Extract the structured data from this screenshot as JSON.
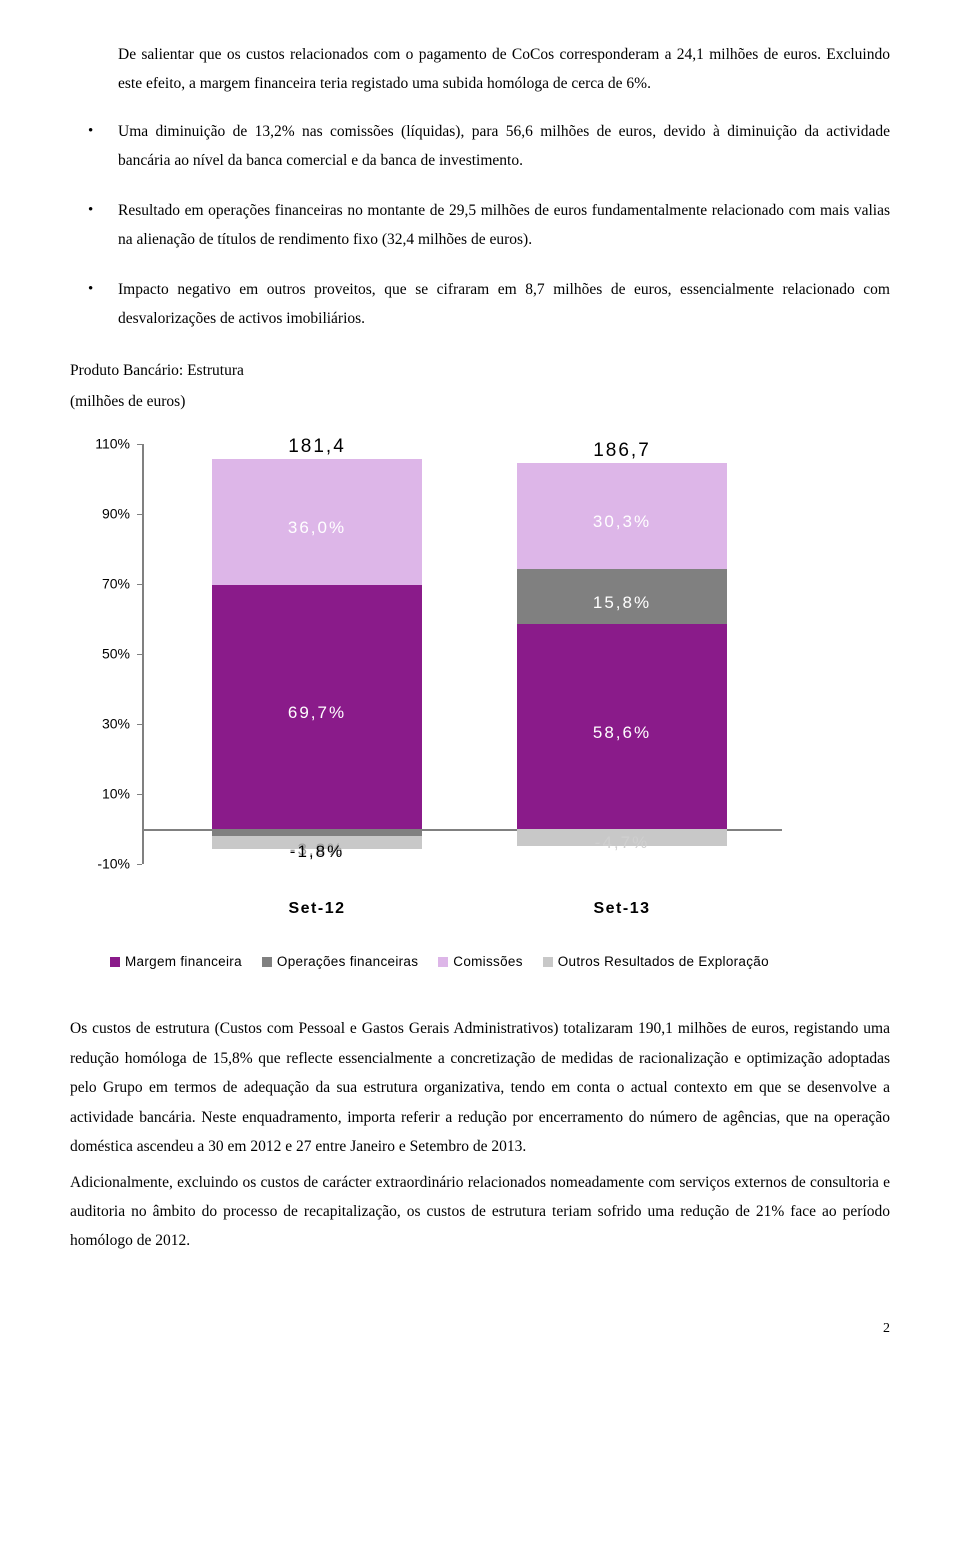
{
  "para_lead": "De salientar que os custos relacionados com o pagamento de CoCos corresponderam a 24,1 milhões de euros. Excluindo este efeito, a margem financeira teria registado uma subida homóloga de cerca de 6%.",
  "bullets": [
    "Uma diminuição de 13,2% nas comissões (líquidas), para 56,6 milhões de euros, devido à diminuição da actividade bancária ao nível da banca comercial e da banca de investimento.",
    "Resultado em operações financeiras no montante de 29,5 milhões de euros fundamentalmente relacionado com mais valias na alienação de títulos de rendimento fixo (32,4 milhões de euros).",
    "Impacto negativo em outros proveitos, que se cifraram em 8,7 milhões de euros, essencialmente relacionado com desvalorizações de activos imobiliários."
  ],
  "chart": {
    "title": "Produto Bancário: Estrutura",
    "subtitle": "(milhões de euros)",
    "y_ticks": [
      "110%",
      "90%",
      "70%",
      "50%",
      "30%",
      "10%",
      "-10%"
    ],
    "y_min": -10,
    "y_max": 110,
    "y_step": 20,
    "categories": [
      "Set-12",
      "Set-13"
    ],
    "totals": [
      "181,4",
      "186,7"
    ],
    "series_colors": {
      "margem": "#8a1b8a",
      "oper": "#808080",
      "comiss": "#ddb6e8",
      "outros": "#c8c8c8"
    },
    "bars": [
      {
        "segs": [
          {
            "key": "outros",
            "from": -5.6,
            "to": -1.8,
            "label": "-3,8%",
            "label_color": "#a0a0a0"
          },
          {
            "key": "oper",
            "from": -1.8,
            "to": 0,
            "label": "-1,8%",
            "label_color": "#000000",
            "label_below": true
          },
          {
            "key": "margem",
            "from": 0,
            "to": 69.7,
            "label": "69,7%",
            "label_color": "#ffffff"
          },
          {
            "key": "comiss",
            "from": 69.7,
            "to": 105.7,
            "label": "36,0%",
            "label_color": "#ffffff"
          }
        ]
      },
      {
        "segs": [
          {
            "key": "outros",
            "from": -4.7,
            "to": 0,
            "label": "-4,7%",
            "label_color": "#cfcfcf"
          },
          {
            "key": "margem",
            "from": 0,
            "to": 58.6,
            "label": "58,6%",
            "label_color": "#ffffff"
          },
          {
            "key": "oper",
            "from": 58.6,
            "to": 74.4,
            "label": "15,8%",
            "label_color": "#ffffff"
          },
          {
            "key": "comiss",
            "from": 74.4,
            "to": 104.7,
            "label": "30,3%",
            "label_color": "#ffffff"
          }
        ]
      }
    ],
    "legend": [
      {
        "color": "#8a1b8a",
        "label": "Margem financeira"
      },
      {
        "color": "#808080",
        "label": "Operações financeiras"
      },
      {
        "color": "#ddb6e8",
        "label": "Comissões"
      },
      {
        "color": "#c8c8c8",
        "label": "Outros Resultados de Exploração"
      }
    ]
  },
  "para_body1": "Os custos de estrutura (Custos com Pessoal e Gastos Gerais Administrativos) totalizaram 190,1 milhões de euros, registando uma redução homóloga de 15,8% que reflecte essencialmente a concretização de medidas de racionalização e optimização adoptadas pelo Grupo em termos de adequação da sua estrutura organizativa, tendo em conta o actual contexto em que se desenvolve a actividade bancária. Neste enquadramento, importa referir a redução por encerramento do número de agências, que na operação doméstica ascendeu a 30 em 2012 e 27 entre Janeiro e Setembro de 2013.",
  "para_body2": "Adicionalmente, excluindo os custos de carácter extraordinário relacionados nomeadamente com serviços externos de consultoria e auditoria no âmbito do processo de recapitalização, os custos de estrutura teriam sofrido uma redução de 21% face ao período homólogo de 2012.",
  "page_number": "2"
}
